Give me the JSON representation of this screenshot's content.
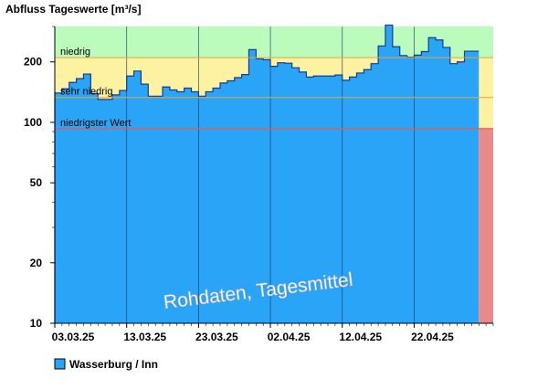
{
  "chart_data": {
    "type": "area",
    "title": "Abfluss Tageswerte [m³/s]",
    "y_scale": "log",
    "ylim": [
      10,
      300
    ],
    "y_ticks": [
      "10",
      "20",
      "50",
      "100",
      "200"
    ],
    "x_start": "2025-03-03",
    "x_end": "2025-05-03",
    "x_ticks": [
      "03.03.25",
      "13.03.25",
      "23.03.25",
      "02.04.25",
      "12.04.25",
      "22.04.25"
    ],
    "grid": "vertical",
    "series": [
      {
        "name": "Wasserburg / Inn",
        "color": "#2aa4f7",
        "values": [
          140,
          147,
          158,
          165,
          174,
          139,
          130,
          130,
          137,
          144,
          170,
          180,
          155,
          135,
          135,
          150,
          145,
          142,
          148,
          142,
          135,
          142,
          148,
          157,
          161,
          167,
          173,
          230,
          207,
          205,
          190,
          198,
          197,
          187,
          178,
          168,
          170,
          170,
          170,
          172,
          162,
          168,
          176,
          183,
          196,
          240,
          305,
          238,
          215,
          211,
          216,
          225,
          264,
          257,
          236,
          196,
          200,
          226,
          226
        ]
      }
    ],
    "bands": [
      {
        "label": "",
        "from": 210,
        "to": 300,
        "color": "#bbfcbc"
      },
      {
        "label": "niedrig",
        "from": 133,
        "to": 210,
        "color": "#fdf1a2"
      },
      {
        "label": "sehr niedrig",
        "from": 93,
        "to": 133,
        "color": "#fdf1a2"
      }
    ],
    "reference_lines": [
      {
        "label": "niedrigster Wert",
        "value": 93,
        "color": "#e05050"
      }
    ],
    "forecast_region": {
      "from_index": 59,
      "color": "#e88a8a"
    },
    "annotation": "Rohdaten, Tagesmittel",
    "legend": "bottom-left"
  }
}
